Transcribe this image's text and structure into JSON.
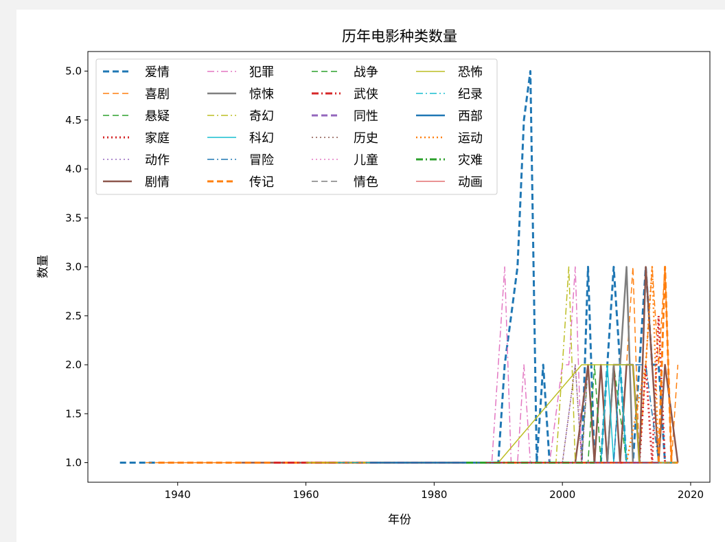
{
  "chart_data": {
    "type": "line",
    "title": "历年电影种类数量",
    "xlabel": "年份",
    "ylabel": "数量",
    "xlim": [
      1926,
      2023
    ],
    "ylim": [
      0.8,
      5.2
    ],
    "x_ticks": [
      1940,
      1960,
      1980,
      2000,
      2020
    ],
    "y_ticks": [
      1.0,
      1.5,
      2.0,
      2.5,
      3.0,
      3.5,
      4.0,
      4.5,
      5.0
    ],
    "grid": false,
    "legend_position": "upper-left",
    "series": [
      {
        "name": "爱情",
        "color": "#1f77b4",
        "dash": "dashed",
        "width": 3,
        "x": [
          1931,
          1990,
          1991,
          1992,
          1993,
          1994,
          1995,
          1996,
          1997,
          1998,
          1999,
          2002,
          2003,
          2004,
          2005,
          2006,
          2007,
          2008,
          2009,
          2010,
          2011,
          2012,
          2013,
          2014,
          2015,
          2016,
          2017,
          2018
        ],
        "y": [
          1,
          1,
          2,
          2.5,
          3,
          4.5,
          5,
          1,
          2,
          1,
          1,
          1,
          1,
          3,
          1,
          1,
          2,
          3,
          2,
          1,
          1,
          2,
          3,
          2,
          2,
          1,
          1,
          1
        ]
      },
      {
        "name": "喜剧",
        "color": "#ff7f0e",
        "dash": "dashed",
        "width": 1.5,
        "x": [
          1935,
          1985,
          1990,
          2000,
          2009,
          2010,
          2011,
          2012,
          2013,
          2014,
          2015,
          2016,
          2017,
          2018
        ],
        "y": [
          1,
          1,
          1,
          1,
          1,
          2,
          3,
          1,
          2,
          3,
          2,
          3,
          1,
          2
        ]
      },
      {
        "name": "悬疑",
        "color": "#2ca02c",
        "dash": "dashed",
        "width": 1.5,
        "x": [
          1950,
          1988,
          2000,
          2002,
          2003,
          2004,
          2005,
          2006,
          2007,
          2008,
          2010,
          2013,
          2015,
          2018
        ],
        "y": [
          1,
          1,
          1,
          1,
          1,
          2,
          1,
          2,
          1,
          2,
          1,
          1,
          1,
          1
        ]
      },
      {
        "name": "家庭",
        "color": "#d62728",
        "dash": "dotted",
        "width": 3,
        "x": [
          1955,
          1990,
          2000,
          2010,
          2012,
          2013,
          2014,
          2015,
          2016,
          2017,
          2018
        ],
        "y": [
          1,
          1,
          1,
          1,
          1,
          2,
          1,
          2.5,
          1,
          1,
          1
        ]
      },
      {
        "name": "动作",
        "color": "#9467bd",
        "dash": "dotted",
        "width": 1.5,
        "x": [
          1950,
          1990,
          2000,
          2002,
          2003,
          2004,
          2005,
          2006,
          2008,
          2010,
          2012,
          2014,
          2016,
          2018
        ],
        "y": [
          1,
          1,
          1,
          2,
          1,
          2,
          1,
          1,
          1,
          1,
          1,
          1,
          1,
          1
        ]
      },
      {
        "name": "剧情",
        "color": "#8c564b",
        "dash": "solid",
        "width": 2.5,
        "x": [
          1950,
          1960,
          1990,
          2000,
          2001,
          2002,
          2003,
          2004,
          2005,
          2006,
          2007,
          2008,
          2009,
          2010,
          2011,
          2012,
          2013,
          2014,
          2015,
          2016,
          2017,
          2018
        ],
        "y": [
          1,
          1,
          1,
          1,
          1,
          1,
          1.5,
          2,
          1,
          2,
          1,
          2,
          1,
          2,
          2,
          1,
          3,
          2,
          1,
          2,
          1.5,
          1
        ]
      },
      {
        "name": "犯罪",
        "color": "#e377c2",
        "dash": "dashdot",
        "width": 1.5,
        "x": [
          1955,
          1988,
          1989,
          1990,
          1991,
          1992,
          1993,
          1994,
          1995,
          1996,
          1997,
          1998,
          2000,
          2001,
          2002,
          2003,
          2005,
          2010,
          2015,
          2018
        ],
        "y": [
          1,
          1,
          1,
          2,
          3,
          1,
          1,
          2,
          1,
          1,
          1,
          1,
          2,
          2,
          3,
          1,
          1,
          1,
          1,
          1
        ]
      },
      {
        "name": "惊悚",
        "color": "#7f7f7f",
        "dash": "solid",
        "width": 2.5,
        "x": [
          1960,
          1990,
          2000,
          2006,
          2007,
          2008,
          2009,
          2010,
          2011,
          2012,
          2018
        ],
        "y": [
          1,
          1,
          1,
          1,
          1,
          2,
          2,
          3,
          1,
          1,
          1
        ]
      },
      {
        "name": "奇幻",
        "color": "#bcbd22",
        "dash": "dashdot",
        "width": 1.5,
        "x": [
          1960,
          1990,
          1998,
          1999,
          2000,
          2001,
          2002,
          2003,
          2005,
          2008,
          2010,
          2012,
          2015,
          2018
        ],
        "y": [
          1,
          1,
          1,
          1,
          2,
          3,
          1,
          1,
          1,
          1,
          1,
          1,
          1,
          1
        ]
      },
      {
        "name": "科幻",
        "color": "#17becf",
        "dash": "solid",
        "width": 1.5,
        "x": [
          1965,
          1990,
          2000,
          2005,
          2006,
          2007,
          2008,
          2009,
          2010,
          2011,
          2014,
          2015,
          2018
        ],
        "y": [
          1,
          1,
          1,
          1,
          1,
          2,
          1,
          2,
          1,
          1,
          1,
          1,
          1
        ]
      },
      {
        "name": "冒险",
        "color": "#1f77b4",
        "dash": "dashdot",
        "width": 1.5,
        "x": [
          1970,
          1990,
          2000,
          2005,
          2008,
          2009,
          2010,
          2011,
          2012,
          2013,
          2014,
          2015,
          2018
        ],
        "y": [
          1,
          1,
          1,
          1,
          1,
          2,
          2,
          2,
          2,
          2,
          1.5,
          1,
          1
        ]
      },
      {
        "name": "传记",
        "color": "#ff7f0e",
        "dash": "dashed",
        "width": 3,
        "x": [
          1937,
          1988,
          1990,
          2000,
          2014,
          2015,
          2016,
          2017,
          2018
        ],
        "y": [
          1,
          1,
          1,
          1,
          1,
          1,
          3,
          1,
          1
        ]
      },
      {
        "name": "战争",
        "color": "#2ca02c",
        "dash": "dashed",
        "width": 1.5,
        "x": [
          1960,
          1995,
          2000,
          2004,
          2005,
          2006,
          2007,
          2008,
          2010,
          2015
        ],
        "y": [
          1,
          1,
          1,
          1,
          2,
          1,
          1,
          1,
          1,
          1
        ]
      },
      {
        "name": "武侠",
        "color": "#d62728",
        "dash": "dashdot",
        "width": 3,
        "x": [
          1955,
          1988,
          1990,
          1992,
          1993,
          1994,
          2000,
          2005,
          2010
        ],
        "y": [
          1,
          1,
          1,
          1,
          1,
          1,
          1,
          1,
          1
        ]
      },
      {
        "name": "同性",
        "color": "#9467bd",
        "dash": "dashed",
        "width": 3,
        "x": [
          1990,
          2000,
          2005,
          2010,
          2015
        ],
        "y": [
          1,
          1,
          1,
          1,
          1
        ]
      },
      {
        "name": "历史",
        "color": "#8c564b",
        "dash": "dotted",
        "width": 1.5,
        "x": [
          1960,
          1990,
          2000,
          2002,
          2003,
          2004,
          2005,
          2006,
          2008,
          2010,
          2012,
          2014,
          2016,
          2018
        ],
        "y": [
          1,
          1,
          1,
          2,
          1,
          2,
          1,
          1,
          1,
          1,
          1,
          1,
          1,
          1
        ]
      },
      {
        "name": "儿童",
        "color": "#e377c2",
        "dash": "dotted",
        "width": 1.5,
        "x": [
          1980,
          1990,
          2000,
          2005,
          2010,
          2015
        ],
        "y": [
          1,
          1,
          1,
          1,
          1,
          1
        ]
      },
      {
        "name": "情色",
        "color": "#7f7f7f",
        "dash": "dashed",
        "width": 1.5,
        "x": [
          1990,
          1995,
          2000,
          2005,
          2010
        ],
        "y": [
          1,
          1,
          1,
          1,
          1
        ]
      },
      {
        "name": "恐怖",
        "color": "#bcbd22",
        "dash": "solid",
        "width": 1.5,
        "x": [
          1960,
          1968,
          1990,
          2003,
          2004,
          2005,
          2006,
          2007,
          2008,
          2009,
          2010,
          2011,
          2012,
          2018
        ],
        "y": [
          1,
          1,
          1,
          2,
          2,
          2,
          2,
          2,
          2,
          2,
          2,
          2,
          1,
          1
        ]
      },
      {
        "name": "纪录",
        "color": "#17becf",
        "dash": "dashdot",
        "width": 1.5,
        "x": [
          1965,
          1990,
          2000,
          2010,
          2015,
          2018
        ],
        "y": [
          1,
          1,
          1,
          1,
          1,
          1
        ]
      },
      {
        "name": "西部",
        "color": "#1f77b4",
        "dash": "solid",
        "width": 2.5,
        "x": [
          1970,
          1980,
          1990
        ],
        "y": [
          1,
          1,
          1
        ]
      },
      {
        "name": "运动",
        "color": "#ff7f0e",
        "dash": "dotted",
        "width": 2.5,
        "x": [
          1990,
          2000,
          2010,
          2013,
          2014,
          2015,
          2016,
          2018
        ],
        "y": [
          1,
          1,
          1,
          2,
          3,
          1,
          1,
          1
        ]
      },
      {
        "name": "灾难",
        "color": "#2ca02c",
        "dash": "dashdot",
        "width": 3,
        "x": [
          1985,
          1990,
          2000,
          2005
        ],
        "y": [
          1,
          1,
          1,
          1
        ]
      },
      {
        "name": "动画",
        "color": "#d62728",
        "dash": "solid",
        "width": 1,
        "x": [
          1988,
          1995,
          2005,
          2015
        ],
        "y": [
          1,
          1,
          1,
          1
        ]
      }
    ]
  }
}
